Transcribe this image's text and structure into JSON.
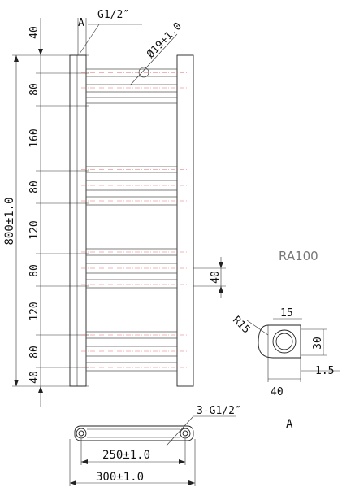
{
  "labels": {
    "dim_top_40": "40",
    "dim_80_a": "80",
    "dim_160": "160",
    "dim_80_b": "80",
    "dim_120_a": "120",
    "dim_80_c": "80",
    "dim_120_b": "120",
    "dim_80_d": "80",
    "dim_bottom_40": "40",
    "overall_height": "800±1.0",
    "section_mark_top": "A",
    "inlet_thread": "G1/2″",
    "bar_diameter": "Ø19+1.0",
    "spacing_40_right": "40",
    "model_name": "RA100",
    "radius": "R15",
    "detail_15": "15",
    "detail_30": "30",
    "detail_1_5": "1.5",
    "detail_40": "40",
    "detail_mark": "A",
    "bottom_thread": "3-G1/2″",
    "width_inner": "250±1.0",
    "width_outer": "300±1.0"
  },
  "colors": {
    "line": "#222222",
    "centerline": "#e36b6b",
    "model_text": "#777777"
  }
}
